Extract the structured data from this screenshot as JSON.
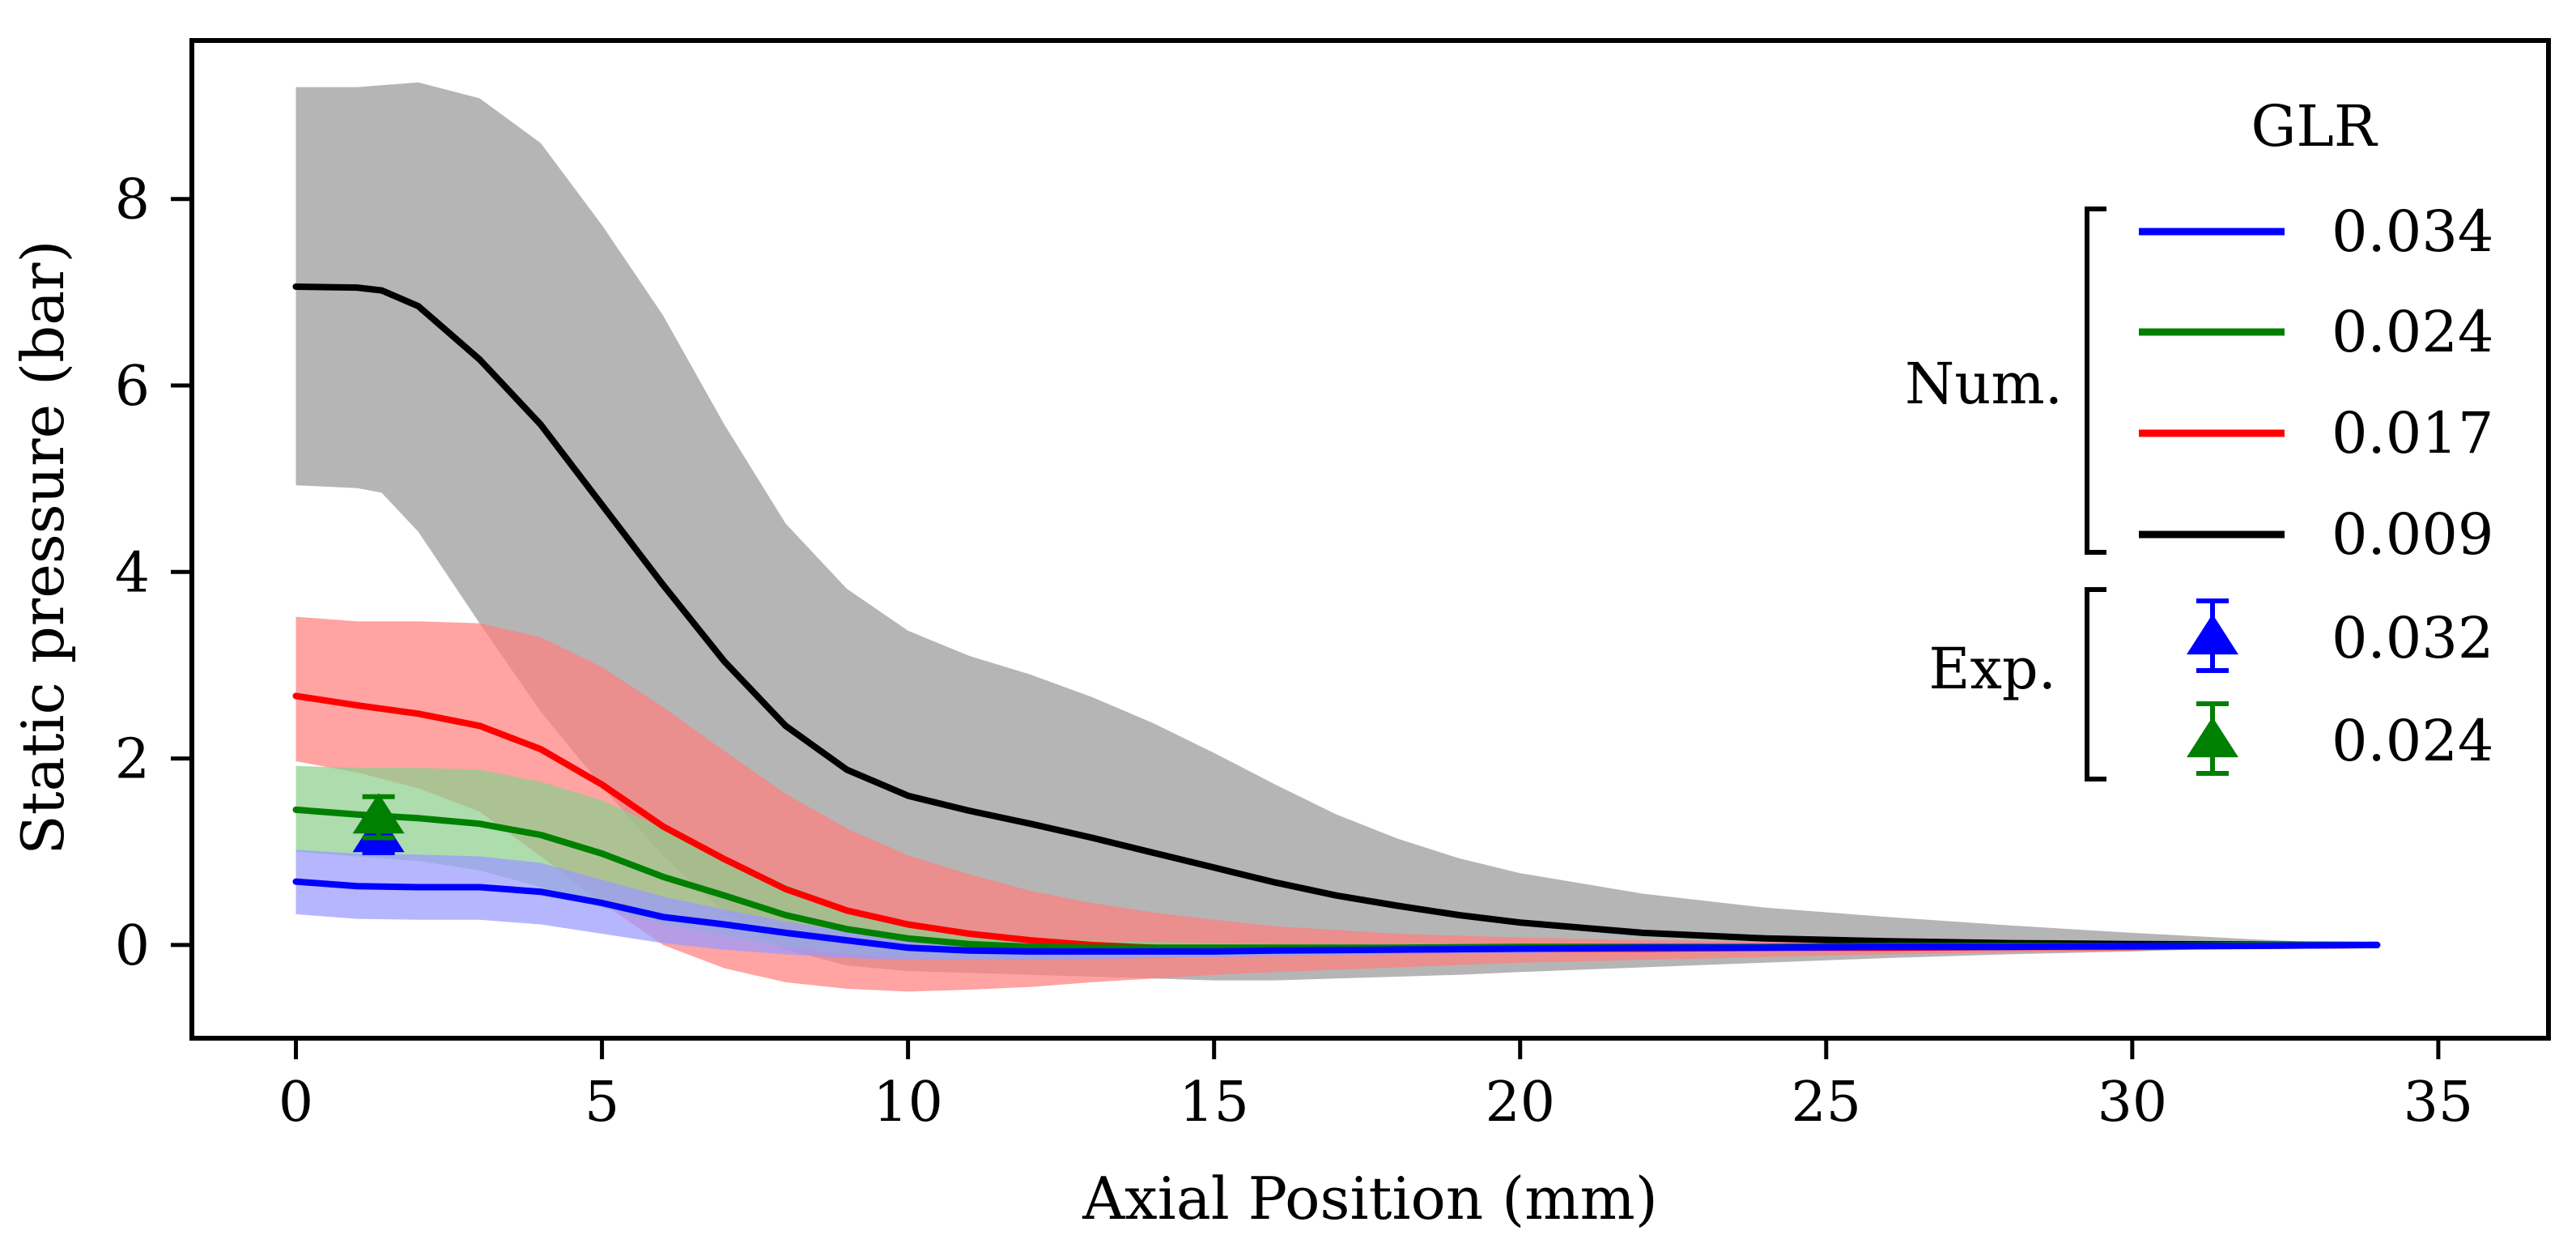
{
  "chart_data": {
    "type": "line",
    "xlabel": "Axial Position (mm)",
    "ylabel": "Static pressure (bar)",
    "xlim": [
      -1.7,
      36.8
    ],
    "ylim": [
      -1.0,
      9.7
    ],
    "x_ticks": [
      0,
      5,
      10,
      15,
      20,
      25,
      30,
      35
    ],
    "y_ticks": [
      0,
      2,
      4,
      6,
      8
    ],
    "grid": false,
    "legend_title": "GLR",
    "legend_groups": [
      {
        "label": "Num.",
        "entries": [
          "0.034",
          "0.024",
          "0.017",
          "0.009"
        ]
      },
      {
        "label": "Exp.",
        "entries": [
          "0.032",
          "0.024"
        ]
      }
    ],
    "series": [
      {
        "name": "0.009",
        "kind": "Num.",
        "color": "#000000",
        "band_color": "#999999",
        "x": [
          0,
          1,
          1.4,
          2,
          3,
          4,
          5,
          6,
          7,
          8,
          9,
          10,
          11,
          12,
          13,
          14,
          15,
          16,
          17,
          18,
          19,
          20,
          22,
          24,
          26,
          28,
          30,
          32,
          34
        ],
        "y": [
          7.06,
          7.05,
          7.02,
          6.85,
          6.28,
          5.58,
          4.72,
          3.86,
          3.04,
          2.35,
          1.88,
          1.6,
          1.44,
          1.3,
          1.15,
          0.99,
          0.83,
          0.67,
          0.53,
          0.42,
          0.32,
          0.24,
          0.13,
          0.07,
          0.04,
          0.02,
          0.01,
          0.005,
          0
        ],
        "upper": [
          9.2,
          9.2,
          9.22,
          9.25,
          9.08,
          8.6,
          7.72,
          6.75,
          5.58,
          4.52,
          3.82,
          3.37,
          3.1,
          2.9,
          2.66,
          2.38,
          2.06,
          1.72,
          1.4,
          1.14,
          0.93,
          0.77,
          0.55,
          0.4,
          0.3,
          0.21,
          0.13,
          0.06,
          0
        ],
        "lower": [
          4.93,
          4.9,
          4.85,
          4.43,
          3.45,
          2.5,
          1.7,
          0.95,
          0.35,
          -0.05,
          -0.22,
          -0.28,
          -0.3,
          -0.32,
          -0.34,
          -0.36,
          -0.38,
          -0.38,
          -0.36,
          -0.34,
          -0.32,
          -0.29,
          -0.24,
          -0.19,
          -0.14,
          -0.1,
          -0.07,
          -0.03,
          0
        ]
      },
      {
        "name": "0.017",
        "kind": "Num.",
        "color": "#ff0000",
        "band_color": "#ff7f7f",
        "x": [
          0,
          1,
          2,
          3,
          4,
          5,
          6,
          7,
          8,
          9,
          10,
          11,
          12,
          13,
          14,
          15,
          16,
          18,
          20,
          22,
          24,
          26,
          28,
          30,
          32,
          34
        ],
        "y": [
          2.67,
          2.57,
          2.48,
          2.35,
          2.1,
          1.72,
          1.27,
          0.92,
          0.6,
          0.37,
          0.22,
          0.12,
          0.05,
          0.0,
          -0.03,
          -0.05,
          -0.05,
          -0.05,
          -0.04,
          -0.04,
          -0.03,
          -0.03,
          -0.02,
          -0.02,
          -0.01,
          0
        ],
        "upper": [
          3.52,
          3.47,
          3.47,
          3.45,
          3.3,
          2.98,
          2.55,
          2.08,
          1.62,
          1.25,
          0.96,
          0.76,
          0.58,
          0.45,
          0.35,
          0.27,
          0.2,
          0.12,
          0.08,
          0.05,
          0.04,
          0.03,
          0.02,
          0.01,
          0.005,
          0
        ],
        "lower": [
          1.97,
          1.85,
          1.68,
          1.43,
          0.95,
          0.45,
          0.0,
          -0.25,
          -0.4,
          -0.47,
          -0.5,
          -0.48,
          -0.45,
          -0.4,
          -0.36,
          -0.32,
          -0.29,
          -0.24,
          -0.19,
          -0.16,
          -0.13,
          -0.1,
          -0.08,
          -0.06,
          -0.03,
          0
        ]
      },
      {
        "name": "0.024",
        "kind": "Num.",
        "color": "#008000",
        "band_color": "#8ecf8e",
        "x": [
          0,
          1,
          2,
          3,
          4,
          5,
          6,
          7,
          8,
          9,
          10,
          11,
          12,
          13,
          14,
          15,
          16,
          18,
          20,
          22,
          24,
          26,
          28,
          30,
          32,
          34
        ],
        "y": [
          1.45,
          1.4,
          1.36,
          1.3,
          1.18,
          0.98,
          0.73,
          0.53,
          0.32,
          0.17,
          0.07,
          0.01,
          -0.02,
          -0.03,
          -0.03,
          -0.03,
          -0.03,
          -0.03,
          -0.02,
          -0.02,
          -0.02,
          -0.01,
          -0.01,
          -0.01,
          0,
          0
        ],
        "upper": [
          1.92,
          1.9,
          1.9,
          1.88,
          1.75,
          1.55,
          1.25,
          0.95,
          0.65,
          0.4,
          0.25,
          0.15,
          0.08,
          0.05,
          0.03,
          0.02,
          0.01,
          0.01,
          0.01,
          0.01,
          0.01,
          0.0,
          0.0,
          0.0,
          0,
          0
        ],
        "lower": [
          1.0,
          0.95,
          0.9,
          0.8,
          0.62,
          0.4,
          0.22,
          0.1,
          -0.02,
          -0.1,
          -0.14,
          -0.15,
          -0.15,
          -0.14,
          -0.13,
          -0.12,
          -0.11,
          -0.09,
          -0.07,
          -0.06,
          -0.05,
          -0.04,
          -0.03,
          -0.02,
          -0.01,
          0
        ]
      },
      {
        "name": "0.034",
        "kind": "Num.",
        "color": "#0000ff",
        "band_color": "#9a9aff",
        "x": [
          0,
          1,
          2,
          3,
          4,
          5,
          6,
          7,
          8,
          9,
          10,
          11,
          12,
          13,
          14,
          15,
          16,
          18,
          20,
          22,
          24,
          26,
          28,
          30,
          32,
          34
        ],
        "y": [
          0.68,
          0.63,
          0.62,
          0.62,
          0.57,
          0.45,
          0.3,
          0.22,
          0.13,
          0.05,
          -0.03,
          -0.06,
          -0.07,
          -0.07,
          -0.07,
          -0.07,
          -0.06,
          -0.05,
          -0.04,
          -0.03,
          -0.03,
          -0.02,
          -0.02,
          -0.01,
          -0.01,
          0
        ],
        "upper": [
          1.02,
          0.98,
          0.97,
          0.95,
          0.88,
          0.7,
          0.52,
          0.38,
          0.25,
          0.15,
          0.08,
          0.04,
          0.02,
          0.01,
          0.0,
          0.0,
          0.0,
          0.0,
          0.0,
          0.0,
          0.0,
          0.0,
          0.0,
          0.0,
          0,
          0
        ],
        "lower": [
          0.33,
          0.28,
          0.27,
          0.27,
          0.22,
          0.12,
          0.02,
          -0.05,
          -0.1,
          -0.14,
          -0.16,
          -0.16,
          -0.16,
          -0.15,
          -0.14,
          -0.13,
          -0.12,
          -0.1,
          -0.09,
          -0.07,
          -0.06,
          -0.05,
          -0.04,
          -0.03,
          -0.02,
          0
        ]
      }
    ],
    "experiments": [
      {
        "name": "0.032",
        "kind": "Exp.",
        "color": "#0000ff",
        "x": 1.35,
        "y": 1.17,
        "err": 0.18
      },
      {
        "name": "0.024",
        "kind": "Exp.",
        "color": "#008000",
        "x": 1.35,
        "y": 1.37,
        "err": 0.22
      }
    ]
  }
}
